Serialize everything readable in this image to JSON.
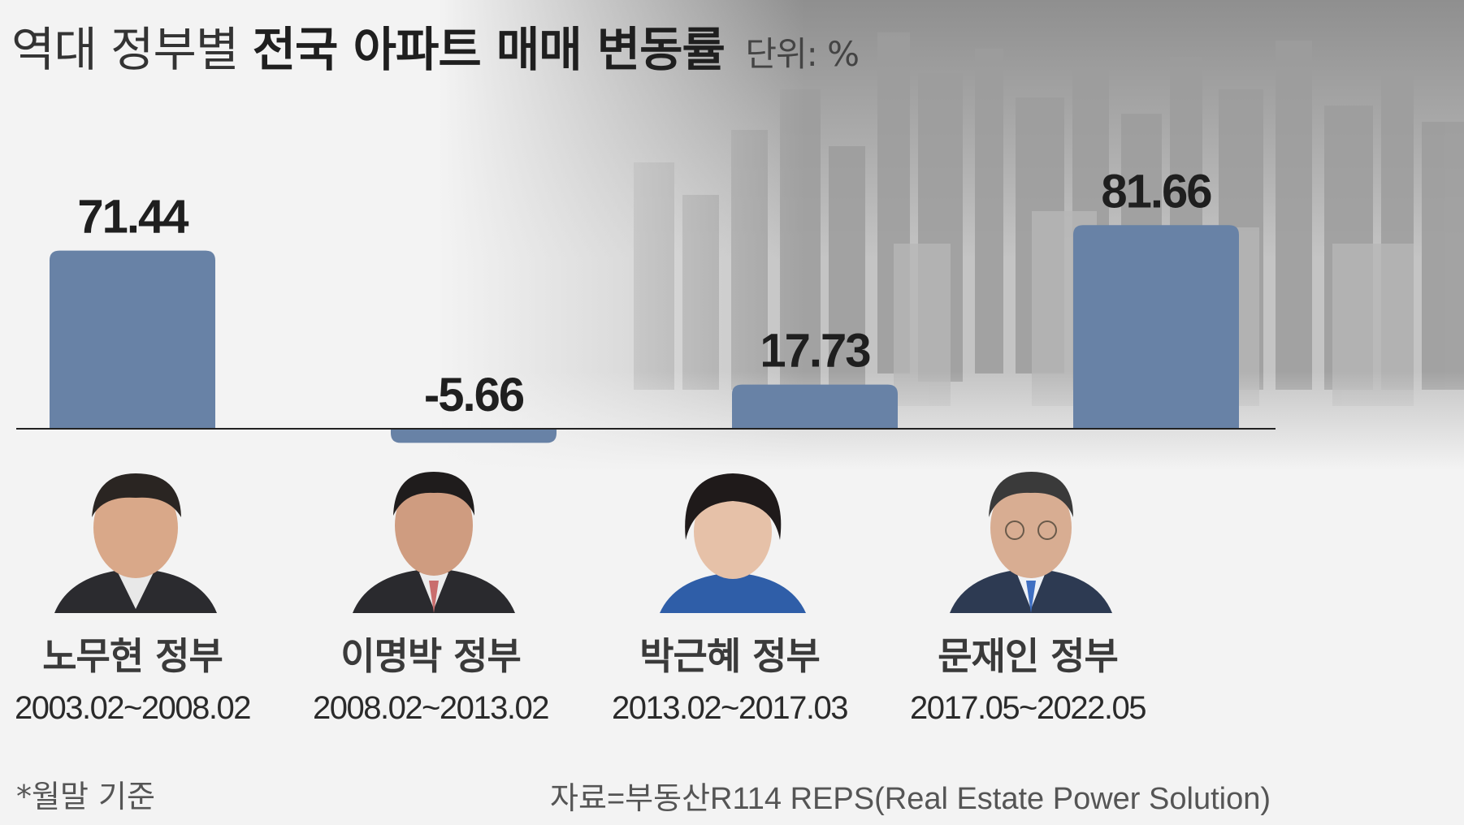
{
  "title": {
    "prefix": "역대 정부별",
    "main": "전국 아파트 매매 변동률",
    "unit": "단위: %"
  },
  "chart_data": {
    "type": "bar",
    "categories": [
      "노무현 정부",
      "이명박 정부",
      "박근혜 정부",
      "문재인 정부"
    ],
    "values": [
      71.44,
      -5.66,
      17.73,
      81.66
    ],
    "value_labels": [
      "71.44",
      "-5.66",
      "17.73",
      "81.66"
    ],
    "periods": [
      "2003.02~2008.02",
      "2008.02~2013.02",
      "2013.02~2017.03",
      "2017.05~2022.05"
    ],
    "bar_color": "#6882a6",
    "grid": false,
    "legend": "none"
  },
  "colors": {
    "bar": "#6882a6",
    "baseline": "#222222"
  },
  "portraits": [
    "portrait-roh-icon",
    "portrait-lee-icon",
    "portrait-park-icon",
    "portrait-moon-icon"
  ],
  "footer": {
    "note": "*월말 기준",
    "source": "자료=부동산R114 REPS(Real Estate Power Solution)"
  }
}
